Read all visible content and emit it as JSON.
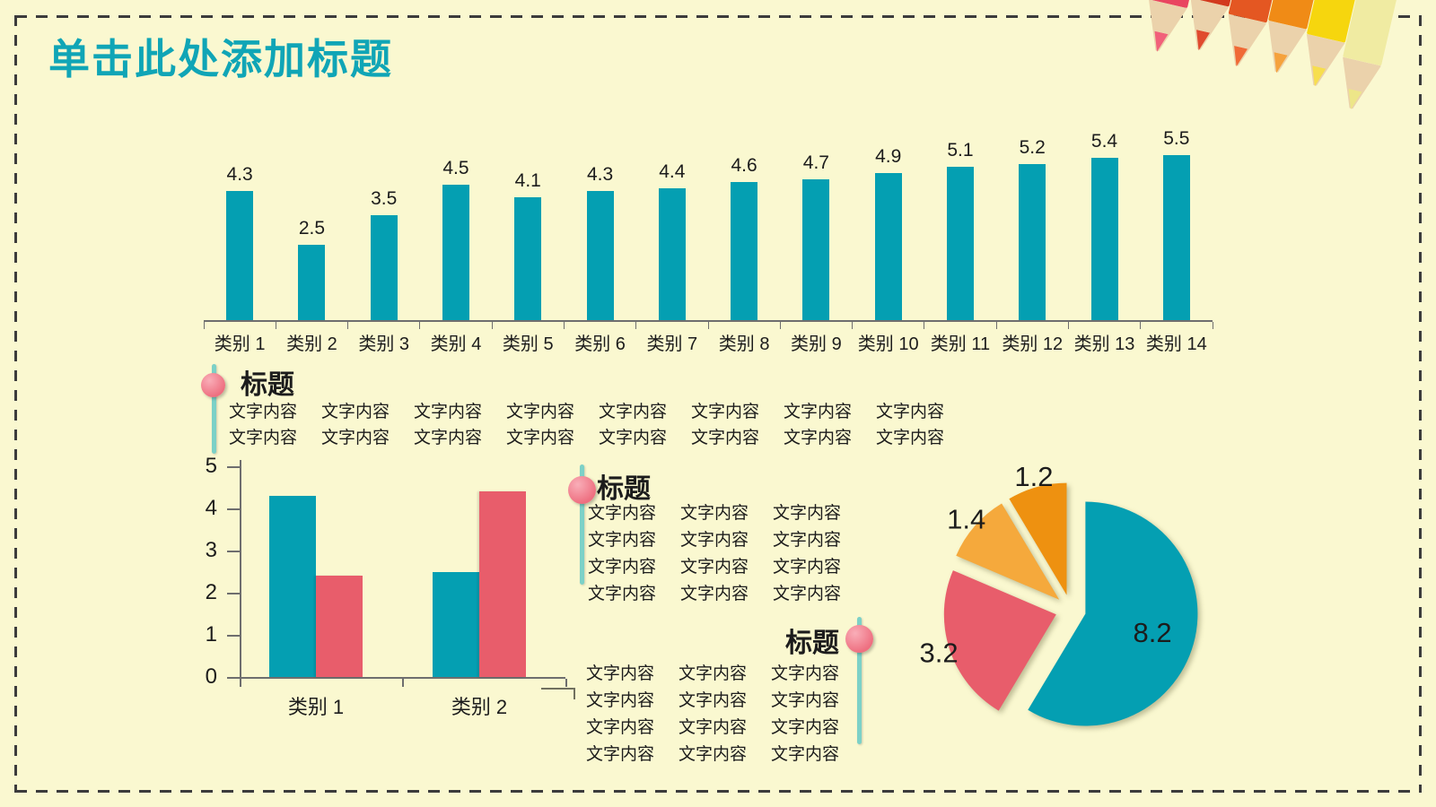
{
  "slide": {
    "title": "单击此处添加标题",
    "colors": {
      "background": "#FAF8D0",
      "border_dash": "#3C3C3C",
      "title_teal": "#10A5B6",
      "series_teal": "#049FB2",
      "series_red": "#E85D6B",
      "orange_light": "#F5A93C",
      "orange_dark": "#EE9110",
      "bullet_pink": "#EE6F80",
      "accent_line_teal": "#7CD1C7"
    }
  },
  "blocks": [
    {
      "title": "标题",
      "rows": 2,
      "cols": 8,
      "cell_text": "文字内容"
    },
    {
      "title": "标题",
      "rows": 4,
      "cols": 3,
      "cell_text": "文字内容"
    },
    {
      "title": "标题",
      "rows": 4,
      "cols": 3,
      "cell_text": "文字内容"
    }
  ],
  "chart_data": [
    {
      "type": "bar",
      "categories": [
        "类别 1",
        "类别 2",
        "类别 3",
        "类别 4",
        "类别 5",
        "类别 6",
        "类别 7",
        "类别 8",
        "类别 9",
        "类别 10",
        "类别 11",
        "类别 12",
        "类别 13",
        "类别 14"
      ],
      "values": [
        4.3,
        2.5,
        3.5,
        4.5,
        4.1,
        4.3,
        4.4,
        4.6,
        4.7,
        4.9,
        5.1,
        5.2,
        5.4,
        5.5
      ],
      "bar_color": "#049FB2",
      "data_labels": true,
      "ylim": [
        0,
        5.5
      ],
      "grid": false,
      "legend": "none"
    },
    {
      "type": "bar",
      "grouped": true,
      "categories": [
        "类别 1",
        "类别 2"
      ],
      "series": [
        {
          "color": "#049FB2",
          "values": [
            4.3,
            2.5
          ]
        },
        {
          "color": "#E85D6B",
          "values": [
            2.4,
            4.4
          ]
        }
      ],
      "yticks": [
        0,
        1,
        2,
        3,
        4,
        5
      ],
      "ylim": [
        0,
        5
      ],
      "grid": false,
      "legend": "none"
    },
    {
      "type": "pie",
      "values": [
        8.2,
        3.2,
        1.4,
        1.2
      ],
      "labels": [
        "8.2",
        "3.2",
        "1.4",
        "1.2"
      ],
      "colors": [
        "#049FB2",
        "#E85D6B",
        "#F5A93C",
        "#EE9110"
      ],
      "start_angle_deg": 0,
      "clockwise": true,
      "exploded": true,
      "data_labels": true,
      "legend": "none"
    }
  ],
  "decoration": {
    "pencils": [
      {
        "color": "#E94560",
        "tip": "#F1607A"
      },
      {
        "color": "#D23A1E",
        "tip": "#E04A2E"
      },
      {
        "color": "#E45722",
        "tip": "#F06A36"
      },
      {
        "color": "#F08B16",
        "tip": "#F5A23C"
      },
      {
        "color": "#F6D60E",
        "tip": "#F7DE4E"
      },
      {
        "color": "#F0EBA2",
        "tip": "#EDE688"
      }
    ],
    "wood_color": "#EBD2AB"
  }
}
